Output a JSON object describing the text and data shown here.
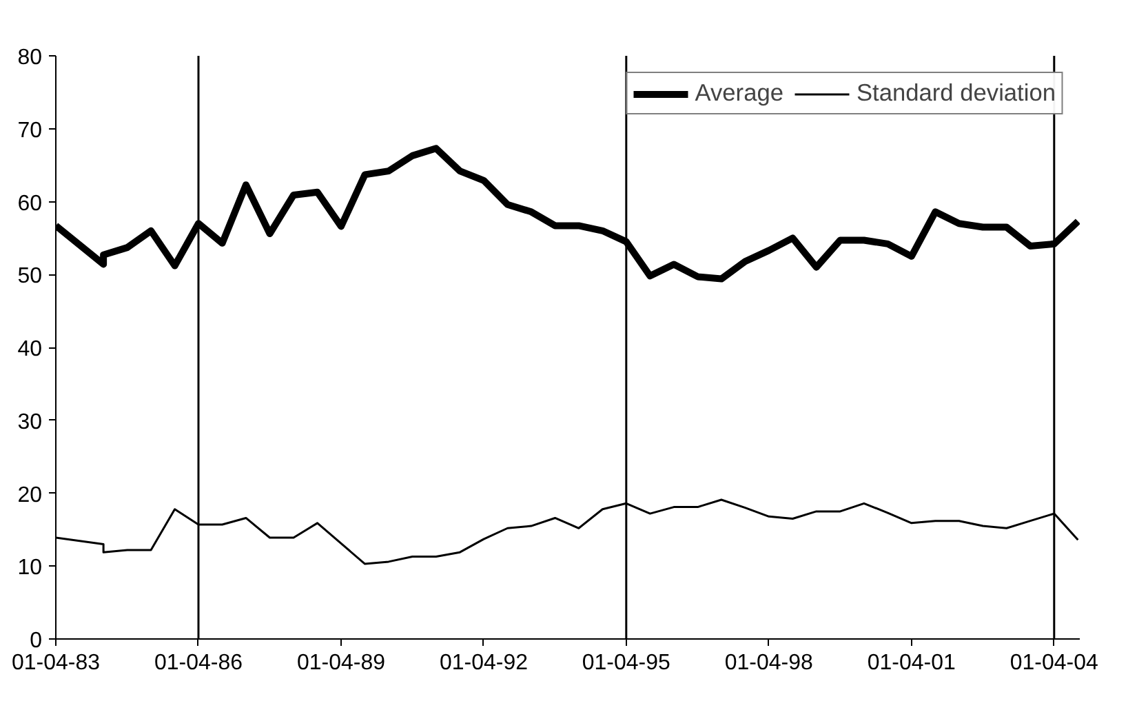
{
  "chart_data": {
    "type": "line",
    "x": [
      "1983-04-01",
      "1984-04-01",
      "1984-04-01",
      "1984-10-01",
      "1985-04-01",
      "1985-10-01",
      "1986-04-01",
      "1986-10-01",
      "1987-04-01",
      "1987-10-01",
      "1988-04-01",
      "1988-10-01",
      "1989-04-01",
      "1989-10-01",
      "1990-04-01",
      "1990-10-01",
      "1991-04-01",
      "1991-10-01",
      "1992-04-01",
      "1992-10-01",
      "1993-04-01",
      "1993-10-01",
      "1994-04-01",
      "1994-10-01",
      "1995-04-01",
      "1995-10-01",
      "1996-04-01",
      "1996-10-01",
      "1997-04-01",
      "1997-10-01",
      "1998-04-01",
      "1998-10-01",
      "1999-04-01",
      "1999-10-01",
      "2000-04-01",
      "2000-10-01",
      "2001-04-01",
      "2001-10-01",
      "2002-04-01",
      "2002-10-01",
      "2003-04-01",
      "2003-10-01",
      "2004-04-01",
      "2004-10-01"
    ],
    "series": [
      {
        "name": "Average",
        "color": "#000000",
        "values": [
          56.7,
          51.4,
          52.7,
          53.7,
          56.0,
          51.2,
          57.0,
          54.3,
          62.3,
          55.6,
          60.9,
          61.3,
          56.6,
          63.7,
          64.2,
          66.3,
          67.3,
          64.2,
          62.9,
          59.6,
          58.6,
          56.7,
          56.7,
          56.0,
          54.5,
          49.8,
          51.4,
          49.7,
          49.4,
          51.8,
          53.3,
          55.0,
          51.0,
          54.7,
          54.7,
          54.2,
          52.5,
          58.6,
          57.0,
          56.5,
          56.5,
          53.9,
          54.2,
          57.3
        ]
      },
      {
        "name": "Standard deviation",
        "color": "#000000",
        "values": [
          13.9,
          13.0,
          11.9,
          12.2,
          12.2,
          17.8,
          15.7,
          15.7,
          16.6,
          13.9,
          13.9,
          15.9,
          13.1,
          10.3,
          10.6,
          11.3,
          11.3,
          11.9,
          13.7,
          15.2,
          15.5,
          16.6,
          15.2,
          17.8,
          18.6,
          17.2,
          18.1,
          18.1,
          19.1,
          18.0,
          16.8,
          16.5,
          17.5,
          17.5,
          18.6,
          17.3,
          15.9,
          16.2,
          16.2,
          15.5,
          15.2,
          16.2,
          17.2,
          13.6
        ]
      }
    ],
    "xlim": [
      "1983-04-01",
      "2004-10-15"
    ],
    "xticks": [
      {
        "value": "1983-04-01",
        "label": "01-04-83"
      },
      {
        "value": "1986-04-01",
        "label": "01-04-86"
      },
      {
        "value": "1989-04-01",
        "label": "01-04-89"
      },
      {
        "value": "1992-04-01",
        "label": "01-04-92"
      },
      {
        "value": "1995-04-01",
        "label": "01-04-95"
      },
      {
        "value": "1998-04-01",
        "label": "01-04-98"
      },
      {
        "value": "2001-04-01",
        "label": "01-04-01"
      },
      {
        "value": "2004-04-01",
        "label": "01-04-04"
      }
    ],
    "ylim": [
      0,
      80
    ],
    "yticks": [
      0,
      10,
      20,
      30,
      40,
      50,
      60,
      70,
      80
    ],
    "ref_lines": [
      {
        "axis": "x",
        "value": "1986-04-01",
        "color": "#000000"
      },
      {
        "axis": "x",
        "value": "1995-04-01",
        "color": "#000000"
      },
      {
        "axis": "x",
        "value": "2004-04-01",
        "color": "#000000"
      }
    ],
    "grid": false,
    "legend": "top right",
    "marker": "none",
    "line_style": "solid"
  }
}
